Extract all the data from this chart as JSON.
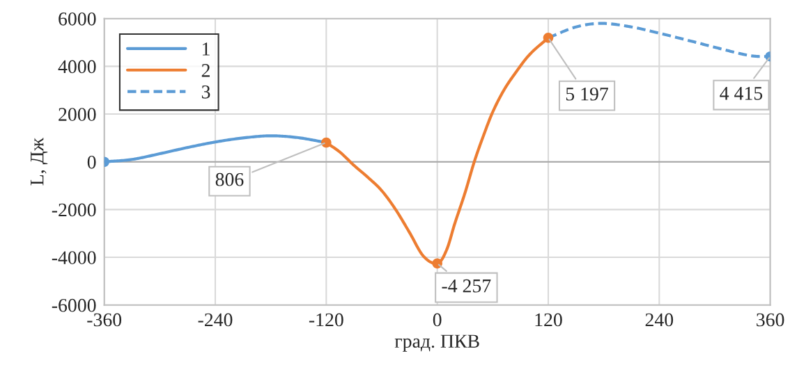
{
  "chart_data": {
    "type": "line",
    "xlabel": "град. ПКВ",
    "ylabel": "L, Дж",
    "xlim": [
      -360,
      360
    ],
    "xticks": [
      -360,
      -240,
      -120,
      0,
      120,
      240,
      360
    ],
    "ylim": [
      -6000,
      6000
    ],
    "yticks": [
      -6000,
      -4000,
      -2000,
      0,
      2000,
      4000,
      6000
    ],
    "grid": true,
    "legend": "top left",
    "marker": "none",
    "series": [
      {
        "name": "1",
        "color": "#5b9bd5",
        "line_style": "solid",
        "x": [
          -360,
          -330,
          -300,
          -270,
          -240,
          -210,
          -180,
          -150,
          -120
        ],
        "values": [
          0,
          100,
          340,
          600,
          830,
          1000,
          1090,
          1010,
          806
        ]
      },
      {
        "name": "2",
        "color": "#ed7d31",
        "line_style": "solid",
        "x": [
          -120,
          -105,
          -90,
          -75,
          -60,
          -45,
          -30,
          -15,
          0,
          10,
          19,
          30,
          40,
          50,
          60,
          72,
          85,
          100,
          120
        ],
        "values": [
          806,
          400,
          -150,
          -650,
          -1210,
          -2000,
          -2960,
          -3950,
          -4257,
          -3700,
          -2580,
          -1300,
          0,
          1100,
          2090,
          3000,
          3750,
          4500,
          5197
        ]
      },
      {
        "name": "3",
        "color": "#5b9bd5",
        "line_style": "dashed",
        "x": [
          120,
          150,
          178,
          210,
          240,
          270,
          300,
          330,
          345,
          360
        ],
        "values": [
          5197,
          5650,
          5800,
          5650,
          5390,
          5100,
          4800,
          4510,
          4420,
          4415
        ]
      },
      {
        "type": "scatter",
        "marker": "circle",
        "x": [
          -360,
          -120,
          0,
          120,
          360
        ],
        "values": [
          0,
          806,
          -4257,
          5197,
          4415
        ],
        "colors": [
          "#5b9bd5",
          "#ed7d31",
          "#ed7d31",
          "#ed7d31",
          "#5b9bd5"
        ]
      }
    ],
    "annotations": [
      {
        "text": "806",
        "x": -120,
        "y": 806
      },
      {
        "text": "-4 257",
        "x": 0,
        "y": -4257
      },
      {
        "text": "5 197",
        "x": 120,
        "y": 5197
      },
      {
        "text": "4 415",
        "x": 360,
        "y": 4415
      }
    ]
  }
}
